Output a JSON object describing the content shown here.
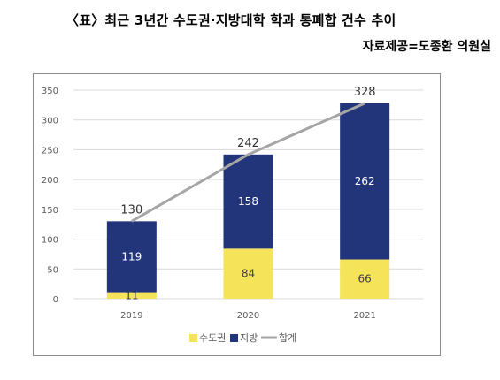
{
  "title": "〈표〉최근 3년간 수도권·지방대학 학과 통폐합 건수 추이",
  "source": "자료제공=도종환 의원실",
  "colors": {
    "capital": "#f5e35a",
    "regional": "#23357a",
    "total": "#a6a6a6",
    "grid": "#d9d9d9"
  },
  "chart_data": {
    "type": "bar",
    "stacked": true,
    "categories": [
      "2019",
      "2020",
      "2021"
    ],
    "series": [
      {
        "name": "수도권",
        "values": [
          11,
          84,
          66
        ]
      },
      {
        "name": "지방",
        "values": [
          119,
          158,
          262
        ]
      }
    ],
    "line_series": {
      "name": "합계",
      "values": [
        130,
        242,
        328
      ]
    },
    "ylim": [
      0,
      350
    ],
    "yticks": [
      "0",
      "50",
      "100",
      "150",
      "200",
      "250",
      "300",
      "350"
    ],
    "grid": true,
    "legend": "bottom"
  }
}
